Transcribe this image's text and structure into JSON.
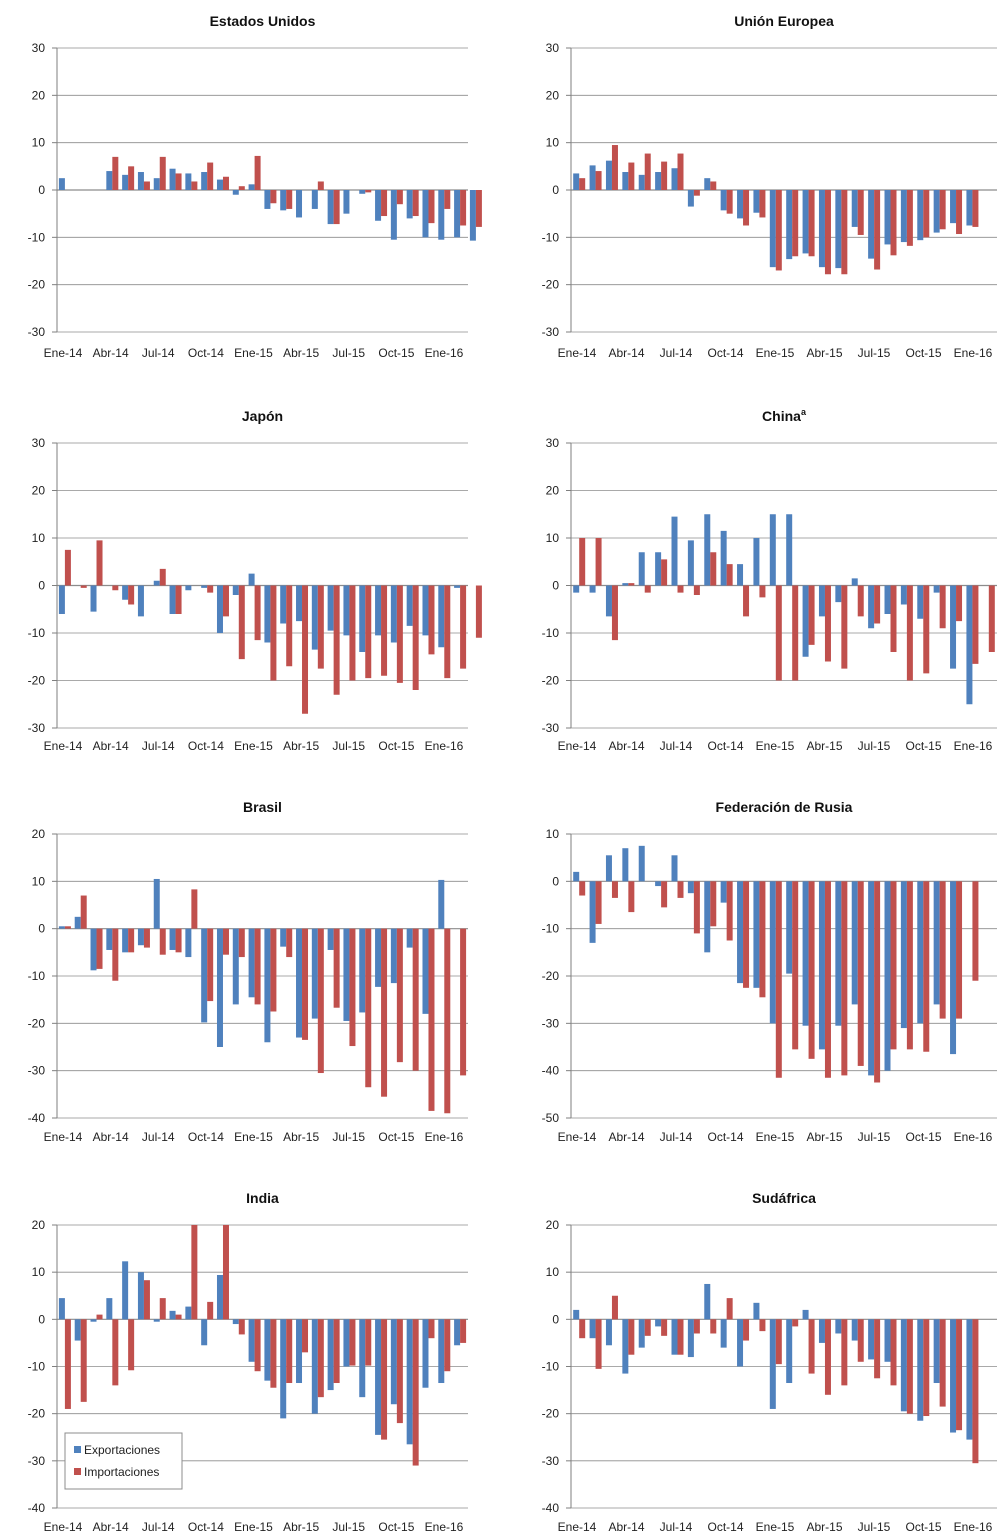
{
  "colors": {
    "exports": "#4f81bd",
    "imports": "#c0504d",
    "grid": "#8c8c8c",
    "axis": "#7f7f7f"
  },
  "legend": {
    "exports": "Exportaciones",
    "imports": "Importaciones"
  },
  "chart_data": [
    {
      "type": "bar",
      "title": "Estados Unidos",
      "title_sup": "",
      "ylim": [
        -30,
        30
      ],
      "yticks": [
        -30,
        -20,
        -10,
        0,
        10,
        20,
        30
      ],
      "x_ticks": [
        "Ene-14",
        "Abr-14",
        "Jul-14",
        "Oct-14",
        "Ene-15",
        "Abr-15",
        "Jul-15",
        "Oct-15",
        "Ene-16"
      ],
      "legend": false,
      "series": [
        {
          "name": "Exportaciones",
          "values": [
            2.5,
            0,
            0,
            4,
            3.2,
            3.8,
            2.5,
            4.5,
            3.5,
            3.8,
            2.2,
            -1,
            1.2,
            -4,
            -4.3,
            -5.8,
            -4,
            -7.2,
            -5,
            -0.8,
            -6.5,
            -10.5,
            -6,
            -10,
            -10.5,
            -10,
            -10.7
          ]
        },
        {
          "name": "Importaciones",
          "values": [
            0,
            0,
            0,
            7,
            5,
            1.8,
            7,
            3.5,
            1.8,
            5.8,
            2.8,
            0.8,
            7.2,
            -2.8,
            -4,
            0,
            1.8,
            -7.2,
            0,
            -0.5,
            -5.5,
            -3,
            -5.5,
            -7,
            -4,
            -7.5,
            -7.8
          ]
        }
      ]
    },
    {
      "type": "bar",
      "title": "Unión Europea",
      "title_sup": "",
      "ylim": [
        -30,
        30
      ],
      "yticks": [
        -30,
        -20,
        -10,
        0,
        10,
        20,
        30
      ],
      "x_ticks": [
        "Ene-14",
        "Abr-14",
        "Jul-14",
        "Oct-14",
        "Ene-15",
        "Abr-15",
        "Jul-15",
        "Oct-15",
        "Ene-16"
      ],
      "legend": false,
      "series": [
        {
          "name": "Exportaciones",
          "values": [
            3.5,
            5.2,
            6.2,
            3.8,
            3.2,
            3.8,
            4.6,
            -3.5,
            2.5,
            -4.3,
            -6,
            -4.8,
            -16.3,
            -14.6,
            -13.4,
            -16.3,
            -16.5,
            -7.8,
            -14.5,
            -11.5,
            -11,
            -10.6,
            -9,
            -7,
            -7.5
          ]
        },
        {
          "name": "Importaciones",
          "values": [
            2.5,
            4,
            9.5,
            5.8,
            7.7,
            6,
            7.7,
            -1.2,
            1.8,
            -5,
            -7.5,
            -5.8,
            -17,
            -14,
            -14,
            -17.8,
            -17.8,
            -9.5,
            -16.8,
            -13.8,
            -11.8,
            -10,
            -8.3,
            -9.3,
            -7.8
          ]
        }
      ]
    },
    {
      "type": "bar",
      "title": "Japón",
      "title_sup": "",
      "ylim": [
        -30,
        30
      ],
      "yticks": [
        -30,
        -20,
        -10,
        0,
        10,
        20,
        30
      ],
      "x_ticks": [
        "Ene-14",
        "Abr-14",
        "Jul-14",
        "Oct-14",
        "Ene-15",
        "Abr-15",
        "Jul-15",
        "Oct-15",
        "Ene-16"
      ],
      "legend": false,
      "series": [
        {
          "name": "Exportaciones",
          "values": [
            -6,
            0,
            -5.5,
            0,
            -3,
            -6.5,
            1,
            -6,
            -1,
            -0.5,
            -10,
            -2,
            2.5,
            -12,
            -8,
            -7.5,
            -13.5,
            -9.5,
            -10.5,
            -14,
            -10.5,
            -12,
            -8.5,
            -10.5,
            -13,
            -0.5
          ]
        },
        {
          "name": "Importaciones",
          "values": [
            7.5,
            -0.5,
            9.5,
            -1,
            -4,
            0,
            3.5,
            -6,
            0,
            -1.5,
            -6.5,
            -15.5,
            -11.5,
            -20,
            -17,
            -27,
            -17.5,
            -23,
            -20,
            -19.5,
            -19,
            -20.5,
            -22,
            -14.5,
            -19.5,
            -17.5,
            -11
          ]
        }
      ]
    },
    {
      "type": "bar",
      "title": "China",
      "title_sup": "a",
      "ylim": [
        -30,
        30
      ],
      "yticks": [
        -30,
        -20,
        -10,
        0,
        10,
        20,
        30
      ],
      "x_ticks": [
        "Ene-14",
        "Abr-14",
        "Jul-14",
        "Oct-14",
        "Ene-15",
        "Abr-15",
        "Jul-15",
        "Oct-15",
        "Ene-16"
      ],
      "legend": false,
      "series": [
        {
          "name": "Exportaciones",
          "values": [
            -1.5,
            -1.5,
            -6.5,
            0.5,
            7,
            7,
            14.5,
            9.5,
            15,
            11.5,
            4.5,
            10,
            15,
            15,
            -15,
            -6.5,
            -3.5,
            1.5,
            -9,
            -6,
            -4,
            -7,
            -1.5,
            -17.5,
            -25
          ]
        },
        {
          "name": "Importaciones",
          "values": [
            10,
            10,
            -11.5,
            0.5,
            -1.5,
            5.5,
            -1.5,
            -2,
            7,
            4.5,
            -6.5,
            -2.5,
            -20,
            -20,
            -12.5,
            -16,
            -17.5,
            -6.5,
            -8,
            -14,
            -20,
            -18.5,
            -9,
            -7.5,
            -16.5,
            -14
          ]
        }
      ]
    },
    {
      "type": "bar",
      "title": "Brasil",
      "title_sup": "",
      "ylim": [
        -40,
        20
      ],
      "yticks": [
        -40,
        -30,
        -20,
        -10,
        0,
        10,
        20
      ],
      "x_ticks": [
        "Ene-14",
        "Abr-14",
        "Jul-14",
        "Oct-14",
        "Ene-15",
        "Abr-15",
        "Jul-15",
        "Oct-15",
        "Ene-16"
      ],
      "legend": false,
      "series": [
        {
          "name": "Exportaciones",
          "values": [
            0.5,
            2.5,
            -8.8,
            -4.5,
            -5,
            -3.5,
            10.5,
            -4.5,
            -6,
            -19.8,
            -25,
            -16,
            -14.5,
            -24,
            -3.8,
            -23,
            -19,
            -4.5,
            -19.5,
            -17.7,
            -12.3,
            -11.5,
            -4,
            -18,
            10.3
          ]
        },
        {
          "name": "Importaciones",
          "values": [
            0.5,
            7,
            -8.5,
            -11,
            -5,
            -4,
            -5.5,
            -5,
            8.3,
            -15.3,
            -5.5,
            -6,
            -16,
            -17.5,
            -6,
            -23.5,
            -30.5,
            -16.7,
            -24.8,
            -33.5,
            -35.5,
            -28.2,
            -30,
            -38.5,
            -39,
            -31
          ]
        }
      ]
    },
    {
      "type": "bar",
      "title": "Federación de Rusia",
      "title_sup": "",
      "ylim": [
        -50,
        10
      ],
      "yticks": [
        -50,
        -40,
        -30,
        -20,
        -10,
        0,
        10
      ],
      "x_ticks": [
        "Ene-14",
        "Abr-14",
        "Jul-14",
        "Oct-14",
        "Ene-15",
        "Abr-15",
        "Jul-15",
        "Oct-15",
        "Ene-16"
      ],
      "legend": false,
      "series": [
        {
          "name": "Exportaciones",
          "values": [
            2,
            -13,
            5.5,
            7,
            7.5,
            -1,
            5.5,
            -2.5,
            -15,
            -4.5,
            -21.5,
            -22.5,
            -30,
            -19.5,
            -30.5,
            -35.5,
            -30.5,
            -26,
            -41,
            -40,
            -31,
            -30,
            -26,
            -36.5
          ]
        },
        {
          "name": "Importaciones",
          "values": [
            -3,
            -9,
            -3.5,
            -6.5,
            0,
            -5.5,
            -3.5,
            -11,
            -9.5,
            -12.5,
            -22.5,
            -24.5,
            -41.5,
            -35.5,
            -37.5,
            -41.5,
            -41,
            -39,
            -42.5,
            -35.5,
            -35.5,
            -36,
            -29,
            -29,
            -21
          ]
        }
      ]
    },
    {
      "type": "bar",
      "title": "India",
      "title_sup": "",
      "ylim": [
        -40,
        20
      ],
      "yticks": [
        -40,
        -30,
        -20,
        -10,
        0,
        10,
        20
      ],
      "x_ticks": [
        "Ene-14",
        "Abr-14",
        "Jul-14",
        "Oct-14",
        "Ene-15",
        "Abr-15",
        "Jul-15",
        "Oct-15",
        "Ene-16"
      ],
      "legend": true,
      "series": [
        {
          "name": "Exportaciones",
          "values": [
            4.5,
            -4.5,
            -0.5,
            4.5,
            12.3,
            10,
            -0.5,
            1.8,
            2.7,
            -5.5,
            9.4,
            -1,
            -9,
            -13,
            -21,
            -13.5,
            -20,
            -15,
            -10,
            -16.5,
            -24.5,
            -18,
            -26.5,
            -14.5,
            -13.5,
            -5.5
          ]
        },
        {
          "name": "Importaciones",
          "values": [
            -19,
            -17.5,
            1,
            -14,
            -10.8,
            8.3,
            4.5,
            1,
            20,
            3.7,
            20,
            -3.2,
            -11,
            -14.5,
            -13.5,
            -7,
            -16.5,
            -13.5,
            -9.8,
            -9.8,
            -25.5,
            -22,
            -31,
            -4,
            -11,
            -5
          ]
        }
      ]
    },
    {
      "type": "bar",
      "title": "Sudáfrica",
      "title_sup": "",
      "ylim": [
        -40,
        20
      ],
      "yticks": [
        -40,
        -30,
        -20,
        -10,
        0,
        10,
        20
      ],
      "x_ticks": [
        "Ene-14",
        "Abr-14",
        "Jul-14",
        "Oct-14",
        "Ene-15",
        "Abr-15",
        "Jul-15",
        "Oct-15",
        "Ene-16"
      ],
      "legend": false,
      "series": [
        {
          "name": "Exportaciones",
          "values": [
            2,
            -4,
            -5.5,
            -11.5,
            -6,
            -1.5,
            -7.5,
            -8,
            7.5,
            -6,
            -10,
            3.5,
            -19,
            -13.5,
            2,
            -5,
            -3,
            -4.5,
            -8.5,
            -9,
            -19.5,
            -21.5,
            -13.5,
            -24,
            -25.5
          ]
        },
        {
          "name": "Importaciones",
          "values": [
            -4,
            -10.5,
            5,
            -7.5,
            -3.5,
            -3.5,
            -7.5,
            -3,
            -3,
            4.5,
            -4.5,
            -2.5,
            -9.5,
            -1.5,
            -11.5,
            -16,
            -14,
            -9,
            -12.5,
            -14,
            -20,
            -20.5,
            -18.5,
            -23.5,
            -30.5
          ]
        }
      ]
    }
  ]
}
